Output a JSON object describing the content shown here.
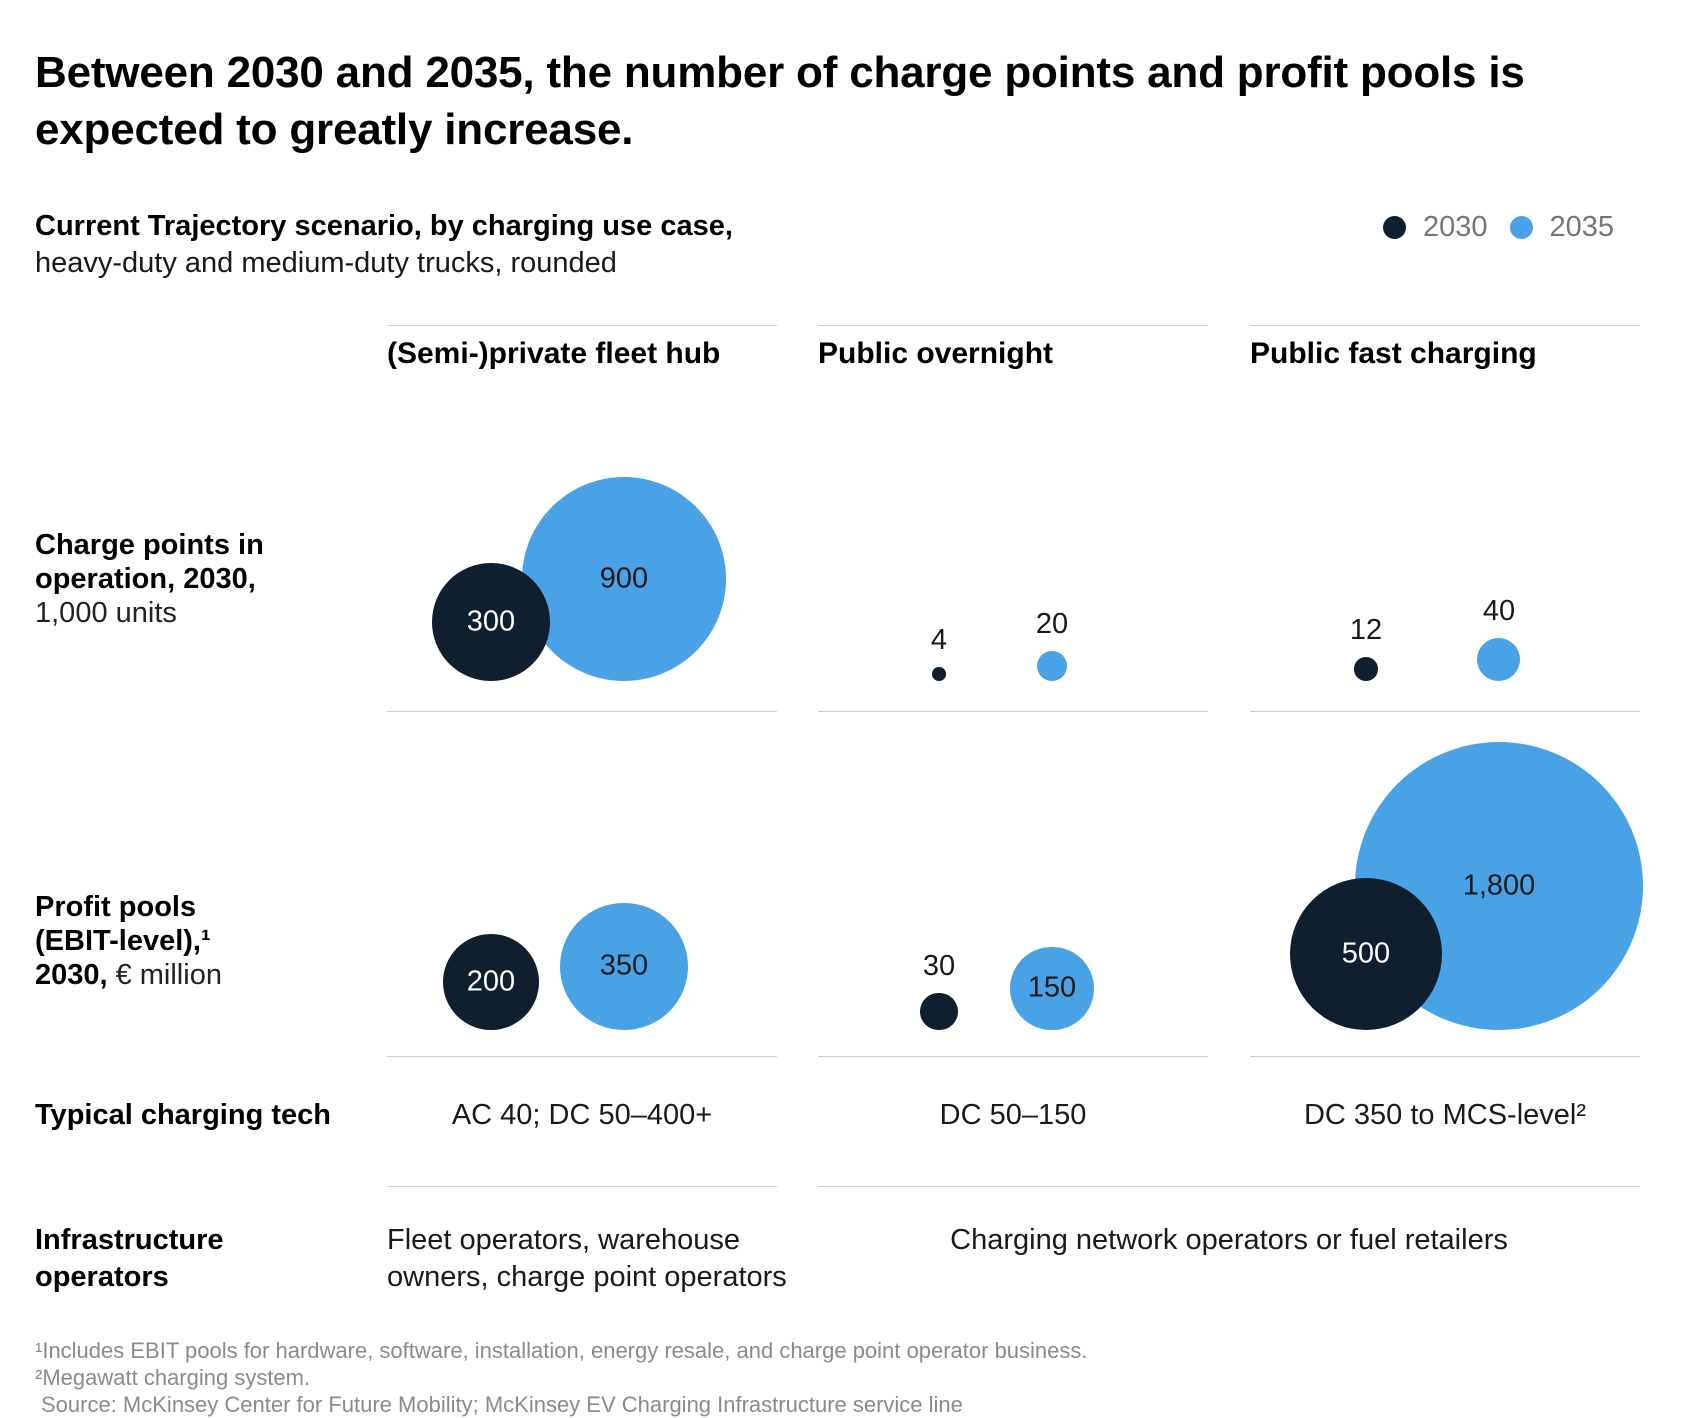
{
  "title": "Between 2030 and 2035, the number of charge points and profit pools is expected to greatly increase.",
  "subtitle": {
    "line1": "Current Trajectory scenario, by charging use case,",
    "line2": "heavy-duty and medium-duty trucks, rounded"
  },
  "legend": {
    "items": [
      {
        "label": "2030",
        "color": "#0f1f2e"
      },
      {
        "label": "2035",
        "color": "#4aa2e6"
      }
    ]
  },
  "columns": {
    "c1": "(Semi-)private fleet hub",
    "c2": "Public overnight",
    "c3": "Public fast charging"
  },
  "row_labels": {
    "charge_points_bold1": "Charge points in",
    "charge_points_bold2": "operation, 2030,",
    "charge_points_unit": "1,000 units",
    "profit_bold1": "Profit pools",
    "profit_bold2": "(EBIT-level),¹",
    "profit_bold3": "2030,",
    "profit_unit": "€ million",
    "tech_label": "Typical charging tech",
    "operators_label": "Infrastructure operators"
  },
  "tech_values": {
    "c1": "AC 40; DC 50–400+",
    "c2": "DC 50–150",
    "c3": "DC 350 to MCS-level²"
  },
  "operators_values": {
    "c1": "Fleet operators, warehouse owners, charge point operators",
    "c23": "Charging network operators or fuel retailers"
  },
  "footnotes": {
    "f1": "¹Includes EBIT pools for hardware, software, installation, energy resale, and charge point operator business.",
    "f2": "²Megawatt charging system.",
    "source": "Source: McKinsey Center for Future Mobility; McKinsey EV Charging Infrastructure service line"
  },
  "colors": {
    "dark": "#0f1f2e",
    "blue": "#4aa2e6",
    "label_on_dark": "#ffffff",
    "label_on_blue": "#1a1a1a",
    "label_above": "#1a1a1a",
    "separator": "#cfcfcf",
    "gray_text": "#767676",
    "footnote_gray": "#8b8b8b"
  },
  "chart_data": {
    "type": "bubble",
    "title": "Current Trajectory scenario, by charging use case, heavy-duty and medium-duty trucks, rounded",
    "categories": [
      "(Semi-)private fleet hub",
      "Public overnight",
      "Public fast charging"
    ],
    "series_labels": [
      "2030",
      "2035"
    ],
    "rows": [
      {
        "metric": "Charge points in operation, 2030, 1,000 units",
        "series": [
          {
            "name": "2030",
            "values": [
              300,
              4,
              12
            ]
          },
          {
            "name": "2035",
            "values": [
              900,
              20,
              40
            ]
          }
        ]
      },
      {
        "metric": "Profit pools (EBIT-level), 2030, € million",
        "series": [
          {
            "name": "2030",
            "values": [
              200,
              30,
              500
            ]
          },
          {
            "name": "2035",
            "values": [
              350,
              150,
              1800
            ]
          }
        ]
      }
    ],
    "scale_note": "circle area proportional to value; radius_px = 3.4 * sqrt(value); circles bottom-aligned per row",
    "legend_position": "top-right",
    "grid": false
  }
}
